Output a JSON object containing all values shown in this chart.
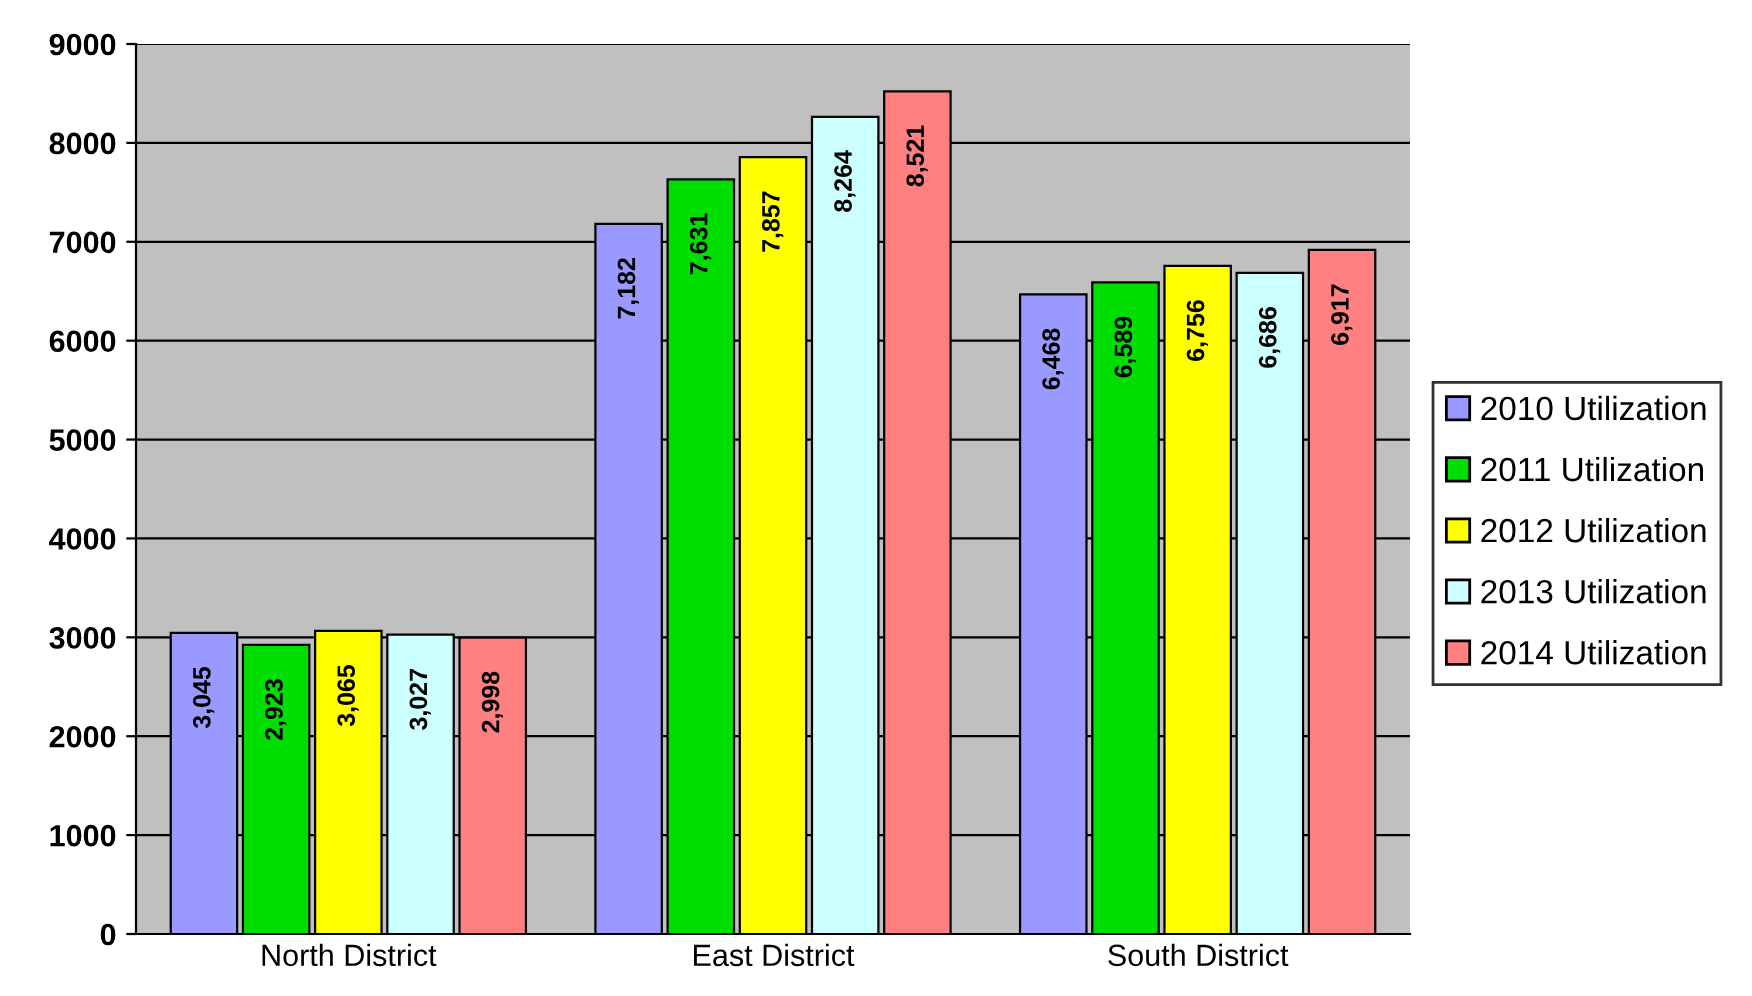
{
  "chart_data": {
    "type": "bar",
    "categories": [
      "North District",
      "East District",
      "South District"
    ],
    "series": [
      {
        "name": "2010 Utilization",
        "color": "#9999ff",
        "values": [
          3045,
          7182,
          6468
        ],
        "value_labels": [
          "3,045",
          "7,182",
          "6,468"
        ]
      },
      {
        "name": "2011 Utilization",
        "color": "#00dd00",
        "values": [
          2923,
          7631,
          6589
        ],
        "value_labels": [
          "2,923",
          "7,631",
          "6,589"
        ]
      },
      {
        "name": "2012 Utilization",
        "color": "#ffff00",
        "values": [
          3065,
          7857,
          6756
        ],
        "value_labels": [
          "3,065",
          "7,857",
          "6,756"
        ]
      },
      {
        "name": "2013 Utilization",
        "color": "#ccffff",
        "values": [
          3027,
          8264,
          6686
        ],
        "value_labels": [
          "3,027",
          "8,264",
          "6,686"
        ]
      },
      {
        "name": "2014 Utilization",
        "color": "#ff8080",
        "values": [
          2998,
          8521,
          6917
        ],
        "value_labels": [
          "2,998",
          "8,521",
          "6,917"
        ]
      }
    ],
    "ylim": [
      0,
      9000
    ],
    "yticks": [
      0,
      1000,
      2000,
      3000,
      4000,
      5000,
      6000,
      7000,
      8000,
      9000
    ],
    "grid": "y",
    "legend": "right"
  }
}
